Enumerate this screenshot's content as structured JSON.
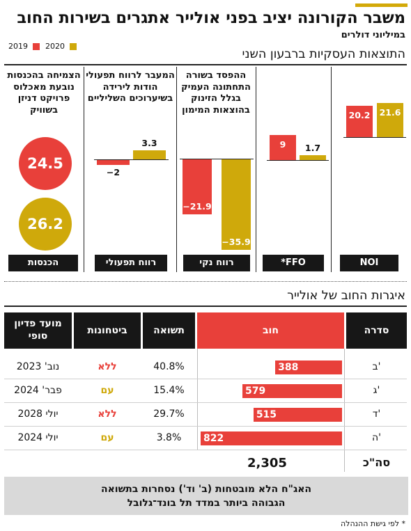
{
  "header": {
    "title": "משבר הקורונה יציב בפני אולייר אתגרים בשירות החוב",
    "subtitle": "במיליוני דולרים"
  },
  "legend": [
    {
      "label": "2019",
      "color": "#e8403a"
    },
    {
      "label": "2020",
      "color": "#cfa90b"
    }
  ],
  "section1_title": "התוצאות העסקיות ברבעון השני",
  "chart_data": {
    "type": "bar",
    "series": [
      {
        "name": "2019",
        "color": "#e8403a",
        "values": [
          20.2,
          9,
          -21.9,
          -2,
          24.5
        ]
      },
      {
        "name": "2020",
        "color": "#cfa90b",
        "values": [
          21.6,
          1.7,
          -35.9,
          3.3,
          26.2
        ]
      }
    ],
    "categories": [
      "NOI",
      "*FFO",
      "רווח נקי",
      "רווח תפעולי",
      "הכנסות"
    ],
    "value_labels": {
      "2019": [
        "20.2",
        "9",
        "−21.9",
        "−2",
        "24.5"
      ],
      "2020": [
        "21.6",
        "1.7",
        "−35.9",
        "3.3",
        "26.2"
      ]
    },
    "annotations": [
      "",
      "",
      "ההפסד בשורה התחתונה העמיק בגלל הזינוק בהוצאות המימון",
      "המעבר לרווח תפעולי הודות לירידה בשיערוכים השליליים",
      "הצמיחה בהכנסות נובעת מאכלוס פרויקט דניזן בשוויק"
    ]
  },
  "section2_title": "איגרות החוב של אולייר",
  "table": {
    "headers": {
      "series": "סדרה",
      "debt": "חוב",
      "yield": "תשואה",
      "collateral": "ביטחונות",
      "maturity": "מועד פדיון\nסופי"
    },
    "rows": [
      {
        "series": "ב'",
        "debt": 388,
        "debt_label": "388",
        "yield": "40.8%",
        "collateral": "ללא",
        "collateral_type": "no",
        "maturity": "נוב' 2023"
      },
      {
        "series": "ג'",
        "debt": 579,
        "debt_label": "579",
        "yield": "15.4%",
        "collateral": "עם",
        "collateral_type": "yes",
        "maturity": "פבר' 2024"
      },
      {
        "series": "ד'",
        "debt": 515,
        "debt_label": "515",
        "yield": "29.7%",
        "collateral": "ללא",
        "collateral_type": "no",
        "maturity": "יולי 2028"
      },
      {
        "series": "ה'",
        "debt": 822,
        "debt_label": "822",
        "yield": "3.8%",
        "collateral": "עם",
        "collateral_type": "yes",
        "maturity": "יולי 2024"
      }
    ],
    "total_label": "סה\"כ",
    "total_value": "2,305"
  },
  "note": "האג\"ח הלא מובטחות (ב' וד') נסחרות בתשואה\nהגבוהה ביותר במדד תל בונד־גלובל",
  "footnote": "* לפי גישת ההנהלה"
}
